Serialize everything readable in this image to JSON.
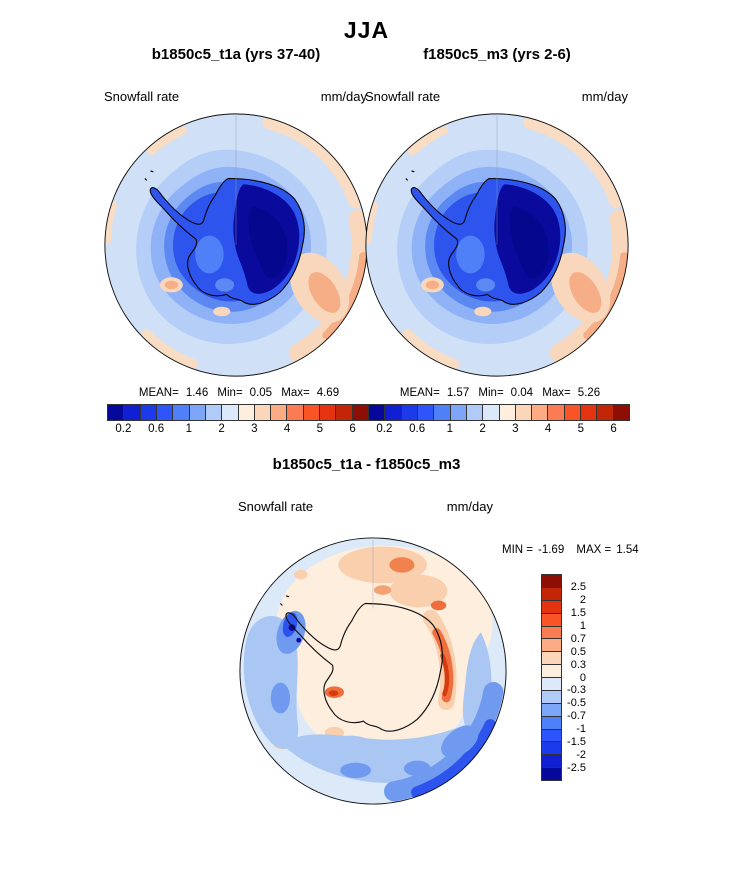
{
  "figure": {
    "stat_labels": {
      "mean": "MEAN=",
      "min": "Min=",
      "max": "Max=",
      "diff_min": "MIN =",
      "diff_max": "MAX ="
    }
  },
  "chart_data": {
    "type": "heatmap",
    "subtype": "south-polar-stereographic filled contour maps",
    "region": "Antarctica / Southern Ocean",
    "suptitle": "JJA",
    "panels": [
      {
        "title": "b1850c5_t1a (yrs 37-40)",
        "variable": "Snowfall rate",
        "units": "mm/day",
        "stats": {
          "mean": "1.46",
          "min": "0.05",
          "max": "4.69"
        },
        "colorbar": "absolute"
      },
      {
        "title": "f1850c5_m3 (yrs 2-6)",
        "variable": "Snowfall rate",
        "units": "mm/day",
        "stats": {
          "mean": "1.57",
          "min": "0.04",
          "max": "5.26"
        },
        "colorbar": "absolute"
      },
      {
        "title": "b1850c5_t1a - f1850c5_m3",
        "variable": "Snowfall rate",
        "units": "mm/day",
        "stats": {
          "min": "-1.69",
          "max": "1.54"
        },
        "colorbar": "difference"
      }
    ],
    "colorbars": {
      "absolute": {
        "orientation": "horizontal",
        "levels": [
          0.2,
          0.4,
          0.6,
          0.8,
          1,
          1.5,
          2,
          2.5,
          3,
          3.5,
          4,
          4.5,
          5,
          5.5,
          6
        ],
        "tick_labels": [
          "0.2",
          "0.6",
          "1",
          "2",
          "3",
          "4",
          "5",
          "6"
        ],
        "tick_level_indices": [
          0,
          2,
          4,
          6,
          8,
          10,
          12,
          14
        ],
        "colors": [
          "#05089b",
          "#101fd1",
          "#1c39ea",
          "#2d55fb",
          "#4f80f8",
          "#7ea6f8",
          "#b0cbf8",
          "#dbe9fa",
          "#fdeede",
          "#fcd6b9",
          "#fcab85",
          "#fb7c52",
          "#f85426",
          "#e5330f",
          "#c32507",
          "#8d0e05"
        ]
      },
      "difference": {
        "orientation": "vertical",
        "levels": [
          -2.5,
          -2,
          -1.5,
          -1,
          -0.7,
          -0.5,
          -0.3,
          0,
          0.3,
          0.5,
          0.7,
          1,
          1.5,
          2,
          2.5
        ],
        "tick_labels_desc": [
          "2.5",
          "2",
          "1.5",
          "1",
          "0.7",
          "0.5",
          "0.3",
          "0",
          "-0.3",
          "-0.5",
          "-0.7",
          "-1",
          "-1.5",
          "-2",
          "-2.5"
        ],
        "colors": [
          "#05089b",
          "#101fd1",
          "#1c39ea",
          "#2d55fb",
          "#4f80f8",
          "#7ea6f8",
          "#b0cbf8",
          "#dbe9fa",
          "#fdeede",
          "#fcd6b9",
          "#fcab85",
          "#fb7c52",
          "#f85426",
          "#e5330f",
          "#c32507",
          "#8d0e05"
        ]
      }
    },
    "palette_notes": {
      "low_extreme": "#05089b",
      "high_extreme": "#8d0e05",
      "midpoint": "#fdeede"
    }
  }
}
